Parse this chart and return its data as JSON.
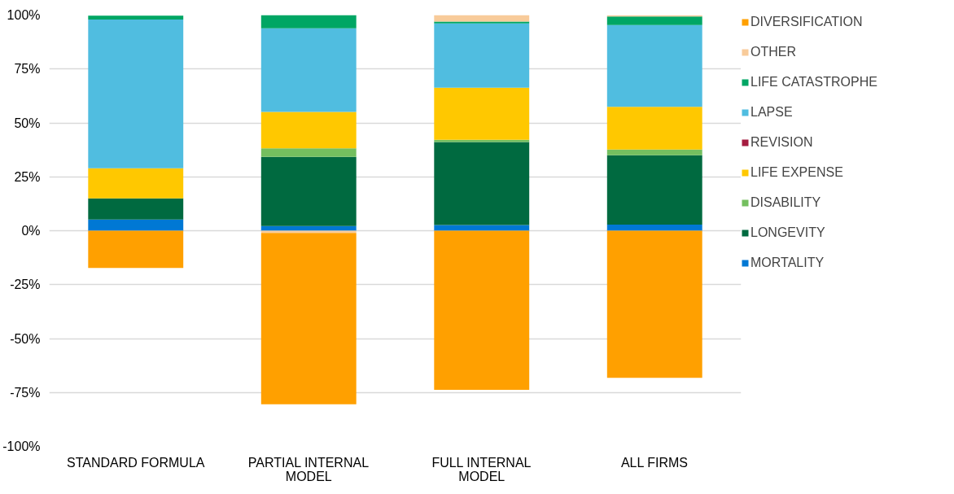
{
  "chart_data": {
    "type": "bar",
    "stacked": true,
    "categories": [
      "STANDARD FORMULA",
      "PARTIAL INTERNAL MODEL",
      "FULL INTERNAL MODEL",
      "ALL FIRMS"
    ],
    "series": [
      {
        "name": "MORTALITY",
        "color": "#0078d4",
        "values": [
          5.2,
          2.2,
          2.6,
          2.8
        ]
      },
      {
        "name": "LONGEVITY",
        "color": "#006a40",
        "values": [
          9.8,
          32,
          38.5,
          32.2
        ]
      },
      {
        "name": "DISABILITY",
        "color": "#74bf5f",
        "values": [
          0,
          4,
          1.1,
          2.6
        ]
      },
      {
        "name": "LIFE EXPENSE",
        "color": "#ffc800",
        "values": [
          14,
          16.9,
          24.1,
          19.9
        ]
      },
      {
        "name": "REVISION",
        "color": "#a51c40",
        "values": [
          0,
          0,
          0,
          0
        ]
      },
      {
        "name": "LAPSE",
        "color": "#50bde0",
        "values": [
          68.9,
          38.8,
          29.8,
          37.9
        ]
      },
      {
        "name": "LIFE CATASTROPHE",
        "color": "#00a664",
        "values": [
          1.8,
          6.1,
          0.9,
          3.9
        ]
      },
      {
        "name": "OTHER",
        "color": "#f8cb9a",
        "values": [
          0,
          -1,
          3,
          0.6
        ]
      },
      {
        "name": "DIVERSIFICATION",
        "color": "#ffa000",
        "values": [
          -17.3,
          -79.5,
          -73.8,
          -68.2
        ]
      }
    ],
    "ylim": [
      -100,
      100
    ],
    "yticks": [
      {
        "value": -100,
        "label": "-100%"
      },
      {
        "value": -75,
        "label": "-75%"
      },
      {
        "value": -50,
        "label": "-50%"
      },
      {
        "value": -25,
        "label": "-25%"
      },
      {
        "value": 0,
        "label": "0%"
      },
      {
        "value": 25,
        "label": "25%"
      },
      {
        "value": 50,
        "label": "50%"
      },
      {
        "value": 75,
        "label": "75%"
      },
      {
        "value": 100,
        "label": "100%"
      }
    ],
    "grid": "y",
    "legend": "right"
  }
}
